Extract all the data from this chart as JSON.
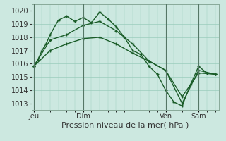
{
  "title": "",
  "xlabel": "Pression niveau de la mer( hPa )",
  "ylabel": "",
  "bg_color": "#cce8e0",
  "grid_color": "#99ccbb",
  "line_color": "#1a5c28",
  "ylim": [
    1012.5,
    1020.5
  ],
  "series1_x": [
    0,
    2,
    4,
    6,
    8,
    12,
    16,
    20,
    24,
    28,
    32,
    36,
    40,
    44,
    48,
    52,
    56,
    60,
    64,
    68,
    72,
    76,
    80,
    84,
    88
  ],
  "series1_y": [
    1015.8,
    1016.3,
    1017.0,
    1017.5,
    1018.2,
    1019.3,
    1019.6,
    1019.2,
    1019.5,
    1019.1,
    1019.9,
    1019.4,
    1018.8,
    1018.0,
    1017.0,
    1016.7,
    1015.8,
    1015.2,
    1014.0,
    1013.1,
    1012.8,
    1014.4,
    1015.8,
    1015.3,
    1015.2
  ],
  "series2_x": [
    0,
    8,
    16,
    24,
    32,
    40,
    48,
    56,
    64,
    72,
    80,
    88
  ],
  "series2_y": [
    1015.8,
    1017.8,
    1018.2,
    1018.9,
    1019.2,
    1018.5,
    1017.5,
    1016.2,
    1015.5,
    1013.0,
    1015.5,
    1015.2
  ],
  "series3_x": [
    0,
    8,
    16,
    24,
    32,
    40,
    48,
    56,
    64,
    72,
    80,
    88
  ],
  "series3_y": [
    1015.8,
    1017.0,
    1017.5,
    1017.9,
    1018.0,
    1017.5,
    1016.8,
    1016.2,
    1015.5,
    1013.5,
    1015.3,
    1015.2
  ],
  "x_tick_positions": [
    0,
    24,
    64,
    80
  ],
  "x_tick_labels": [
    "Jeu",
    "Dim",
    "Ven",
    "Sam"
  ],
  "x_vlines": [
    0,
    24,
    64,
    80
  ],
  "xlim": [
    -1,
    90
  ],
  "marker_size": 3.5,
  "line_width": 1.0,
  "fontsize_xlabel": 8,
  "fontsize_ticks": 7
}
